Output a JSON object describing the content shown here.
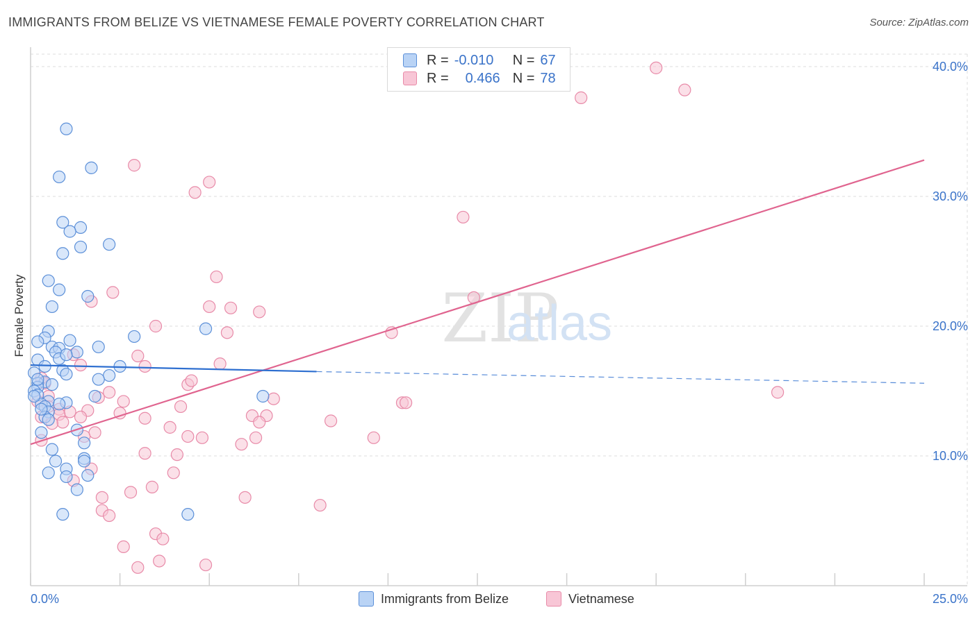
{
  "title": "IMMIGRANTS FROM BELIZE VS VIETNAMESE FEMALE POVERTY CORRELATION CHART",
  "source": "Source: ZipAtlas.com",
  "legend_stats": {
    "belize": {
      "r_label": "R =",
      "r": "-0.010",
      "n_label": "N =",
      "n": "67"
    },
    "vietnamese": {
      "r_label": "R =",
      "r": "0.466",
      "n_label": "N =",
      "n": "78"
    }
  },
  "colors": {
    "belize_fill": "#b9d3f5",
    "belize_stroke": "#5b8fd8",
    "belize_line": "#2e6fd0",
    "viet_fill": "#f8c6d6",
    "viet_stroke": "#e88aa8",
    "viet_line": "#e0648f",
    "tick_text": "#3a73c9",
    "grid": "#dddddd"
  },
  "chart_data": {
    "type": "scatter",
    "title": "IMMIGRANTS FROM BELIZE VS VIETNAMESE FEMALE POVERTY CORRELATION CHART",
    "xlabel": "",
    "ylabel": "Female Poverty",
    "xlim": [
      0,
      25
    ],
    "ylim": [
      0,
      40
    ],
    "x_tick_labels": [
      "0.0%",
      "25.0%"
    ],
    "y_ticks": [
      10,
      20,
      30,
      40
    ],
    "y_tick_labels": [
      "10.0%",
      "20.0%",
      "30.0%",
      "40.0%"
    ],
    "watermark": [
      "ZIP",
      "atlas"
    ],
    "series": [
      {
        "name": "Immigrants from Belize",
        "r": -0.01,
        "n": 67,
        "trend": {
          "solid": [
            [
              0,
              17.0
            ],
            [
              8.0,
              16.5
            ]
          ],
          "dashed": [
            [
              8.0,
              16.5
            ],
            [
              25,
              15.6
            ]
          ]
        },
        "points": [
          [
            1.0,
            35.2
          ],
          [
            0.8,
            31.5
          ],
          [
            1.7,
            32.2
          ],
          [
            0.9,
            28.0
          ],
          [
            1.4,
            27.6
          ],
          [
            1.1,
            27.3
          ],
          [
            1.4,
            26.1
          ],
          [
            2.2,
            26.3
          ],
          [
            0.9,
            25.6
          ],
          [
            0.5,
            23.5
          ],
          [
            0.8,
            22.8
          ],
          [
            1.6,
            22.3
          ],
          [
            0.6,
            21.5
          ],
          [
            0.5,
            19.6
          ],
          [
            0.4,
            19.1
          ],
          [
            2.9,
            19.2
          ],
          [
            4.9,
            19.8
          ],
          [
            0.2,
            18.8
          ],
          [
            0.6,
            18.4
          ],
          [
            0.8,
            18.3
          ],
          [
            1.1,
            18.9
          ],
          [
            1.3,
            18.0
          ],
          [
            1.9,
            18.4
          ],
          [
            0.7,
            18.0
          ],
          [
            0.2,
            17.4
          ],
          [
            0.8,
            17.5
          ],
          [
            1.0,
            17.8
          ],
          [
            0.4,
            16.9
          ],
          [
            0.9,
            16.6
          ],
          [
            2.5,
            16.9
          ],
          [
            0.1,
            16.4
          ],
          [
            1.0,
            16.3
          ],
          [
            2.2,
            16.2
          ],
          [
            0.4,
            15.7
          ],
          [
            0.2,
            15.6
          ],
          [
            0.6,
            15.5
          ],
          [
            0.2,
            15.3
          ],
          [
            0.1,
            15.0
          ],
          [
            0.2,
            14.7
          ],
          [
            1.8,
            14.6
          ],
          [
            6.5,
            14.6
          ],
          [
            0.5,
            14.2
          ],
          [
            0.3,
            14.0
          ],
          [
            1.0,
            14.1
          ],
          [
            0.4,
            13.8
          ],
          [
            0.5,
            13.4
          ],
          [
            0.4,
            13.0
          ],
          [
            0.5,
            12.8
          ],
          [
            1.3,
            12.0
          ],
          [
            0.3,
            11.8
          ],
          [
            1.5,
            11.0
          ],
          [
            0.6,
            10.5
          ],
          [
            0.7,
            9.6
          ],
          [
            1.0,
            9.0
          ],
          [
            1.5,
            9.8
          ],
          [
            1.5,
            9.6
          ],
          [
            0.5,
            8.7
          ],
          [
            1.0,
            8.4
          ],
          [
            1.6,
            8.5
          ],
          [
            1.3,
            7.4
          ],
          [
            0.9,
            5.5
          ],
          [
            4.4,
            5.5
          ],
          [
            0.2,
            15.9
          ],
          [
            0.1,
            14.6
          ],
          [
            0.3,
            13.6
          ],
          [
            0.8,
            14.0
          ],
          [
            1.9,
            15.9
          ]
        ]
      },
      {
        "name": "Vietnamese",
        "r": 0.466,
        "n": 78,
        "trend": {
          "solid": [
            [
              0,
              10.9
            ],
            [
              25,
              32.8
            ]
          ]
        },
        "points": [
          [
            17.5,
            39.9
          ],
          [
            18.3,
            38.2
          ],
          [
            15.4,
            37.6
          ],
          [
            2.9,
            32.4
          ],
          [
            5.0,
            31.1
          ],
          [
            4.6,
            30.3
          ],
          [
            12.1,
            28.4
          ],
          [
            5.2,
            23.8
          ],
          [
            2.3,
            22.6
          ],
          [
            1.7,
            21.9
          ],
          [
            12.4,
            22.2
          ],
          [
            5.0,
            21.5
          ],
          [
            5.6,
            21.4
          ],
          [
            6.4,
            21.1
          ],
          [
            3.5,
            20.0
          ],
          [
            5.5,
            19.5
          ],
          [
            10.1,
            19.5
          ],
          [
            1.2,
            17.8
          ],
          [
            3.0,
            17.7
          ],
          [
            1.4,
            17.0
          ],
          [
            3.2,
            16.9
          ],
          [
            5.3,
            17.1
          ],
          [
            0.3,
            16.0
          ],
          [
            0.4,
            15.6
          ],
          [
            4.4,
            15.5
          ],
          [
            4.5,
            15.8
          ],
          [
            20.9,
            14.9
          ],
          [
            2.2,
            14.9
          ],
          [
            0.5,
            14.6
          ],
          [
            1.9,
            14.5
          ],
          [
            0.2,
            14.2
          ],
          [
            2.6,
            14.2
          ],
          [
            4.2,
            13.8
          ],
          [
            6.8,
            14.4
          ],
          [
            10.4,
            14.1
          ],
          [
            10.5,
            14.1
          ],
          [
            0.5,
            13.8
          ],
          [
            0.8,
            13.6
          ],
          [
            1.1,
            13.4
          ],
          [
            1.6,
            13.5
          ],
          [
            2.5,
            13.3
          ],
          [
            0.3,
            13.0
          ],
          [
            0.8,
            13.2
          ],
          [
            1.4,
            13.0
          ],
          [
            3.2,
            12.9
          ],
          [
            6.2,
            13.1
          ],
          [
            6.6,
            13.1
          ],
          [
            0.9,
            12.6
          ],
          [
            6.4,
            12.6
          ],
          [
            8.4,
            12.7
          ],
          [
            3.9,
            12.2
          ],
          [
            1.8,
            11.8
          ],
          [
            1.5,
            11.5
          ],
          [
            4.4,
            11.5
          ],
          [
            4.8,
            11.4
          ],
          [
            6.3,
            11.4
          ],
          [
            9.6,
            11.4
          ],
          [
            0.3,
            11.2
          ],
          [
            5.9,
            10.9
          ],
          [
            3.2,
            10.2
          ],
          [
            4.1,
            10.1
          ],
          [
            1.7,
            9.0
          ],
          [
            4.0,
            8.7
          ],
          [
            1.2,
            8.1
          ],
          [
            3.4,
            7.6
          ],
          [
            2.8,
            7.2
          ],
          [
            2.0,
            6.8
          ],
          [
            6.0,
            6.8
          ],
          [
            8.1,
            6.2
          ],
          [
            2.0,
            5.8
          ],
          [
            2.2,
            5.4
          ],
          [
            3.5,
            4.0
          ],
          [
            3.7,
            3.6
          ],
          [
            2.6,
            3.0
          ],
          [
            3.6,
            1.9
          ],
          [
            3.0,
            1.4
          ],
          [
            4.9,
            1.6
          ],
          [
            0.6,
            12.5
          ]
        ]
      }
    ]
  },
  "bottom_legend": {
    "belize": "Immigrants from Belize",
    "vietnamese": "Vietnamese"
  }
}
